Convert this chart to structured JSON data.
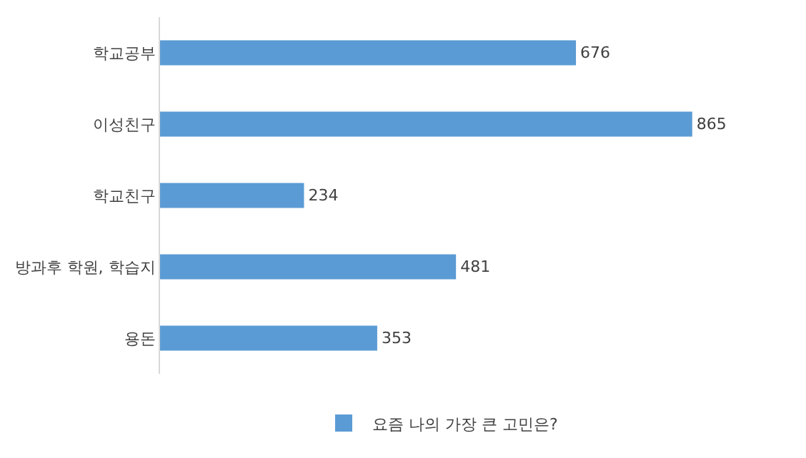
{
  "chart_data": {
    "type": "bar",
    "orientation": "horizontal",
    "categories": [
      "학교공부",
      "이성친구",
      "학교친구",
      "방과후 학원, 학습지",
      "용돈"
    ],
    "series": [
      {
        "name": "요즘 나의 가장 큰 고민은?",
        "color": "#5b9bd5",
        "values": [
          676,
          865,
          234,
          481,
          353
        ]
      }
    ],
    "data_labels": true,
    "tick_labels": "y",
    "legend": "bottom"
  }
}
